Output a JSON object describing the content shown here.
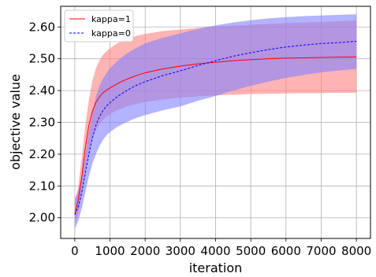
{
  "chart_data": {
    "type": "line",
    "xlabel": "iteration",
    "ylabel": "objective value",
    "xlim": [
      -400,
      8400
    ],
    "ylim": [
      1.935,
      2.665
    ],
    "x_ticks": [
      0,
      1000,
      2000,
      3000,
      4000,
      5000,
      6000,
      7000,
      8000
    ],
    "x_tick_labels": [
      "0",
      "1000",
      "2000",
      "3000",
      "4000",
      "5000",
      "6000",
      "7000",
      "8000"
    ],
    "y_ticks": [
      2.0,
      2.1,
      2.2,
      2.3,
      2.4,
      2.5,
      2.6
    ],
    "y_tick_labels": [
      "2.00",
      "2.10",
      "2.20",
      "2.30",
      "2.40",
      "2.50",
      "2.60"
    ],
    "grid": true,
    "legend_position": "top-left",
    "x": [
      0,
      100,
      200,
      300,
      400,
      500,
      600,
      700,
      800,
      900,
      1000,
      1200,
      1400,
      1600,
      1800,
      2000,
      2500,
      3000,
      3500,
      4000,
      4500,
      5000,
      5500,
      6000,
      6500,
      7000,
      7500,
      8000
    ],
    "series": [
      {
        "name": "kappa=1",
        "color": "#ff0000",
        "line_style": "solid",
        "band_color": "#ff8080",
        "values": [
          2.01,
          2.057,
          2.13,
          2.22,
          2.29,
          2.335,
          2.363,
          2.38,
          2.393,
          2.401,
          2.408,
          2.421,
          2.432,
          2.441,
          2.449,
          2.456,
          2.468,
          2.477,
          2.484,
          2.489,
          2.494,
          2.497,
          2.5,
          2.502,
          2.503,
          2.504,
          2.505,
          2.506
        ],
        "band_upper": [
          2.04,
          2.1,
          2.19,
          2.29,
          2.37,
          2.43,
          2.47,
          2.495,
          2.512,
          2.524,
          2.533,
          2.548,
          2.559,
          2.567,
          2.573,
          2.578,
          2.587,
          2.592,
          2.597,
          2.601,
          2.604,
          2.607,
          2.61,
          2.612,
          2.614,
          2.616,
          2.618,
          2.62
        ],
        "band_lower": [
          1.98,
          2.015,
          2.07,
          2.15,
          2.21,
          2.25,
          2.275,
          2.295,
          2.308,
          2.318,
          2.326,
          2.338,
          2.347,
          2.354,
          2.359,
          2.364,
          2.372,
          2.378,
          2.382,
          2.385,
          2.387,
          2.389,
          2.39,
          2.391,
          2.392,
          2.392,
          2.393,
          2.393
        ]
      },
      {
        "name": "kappa=0",
        "color": "#0000ff",
        "line_style": "dashed",
        "band_color": "#8080ff",
        "values": [
          2.01,
          2.035,
          2.08,
          2.14,
          2.2,
          2.25,
          2.29,
          2.318,
          2.337,
          2.351,
          2.362,
          2.38,
          2.395,
          2.408,
          2.419,
          2.428,
          2.447,
          2.462,
          2.479,
          2.494,
          2.508,
          2.519,
          2.529,
          2.537,
          2.543,
          2.548,
          2.551,
          2.555
        ],
        "band_upper": [
          2.06,
          2.085,
          2.13,
          2.2,
          2.27,
          2.33,
          2.38,
          2.414,
          2.437,
          2.455,
          2.47,
          2.492,
          2.51,
          2.525,
          2.537,
          2.548,
          2.566,
          2.58,
          2.594,
          2.605,
          2.614,
          2.621,
          2.627,
          2.631,
          2.634,
          2.636,
          2.638,
          2.64
        ],
        "band_lower": [
          1.965,
          1.99,
          2.03,
          2.08,
          2.13,
          2.17,
          2.2,
          2.225,
          2.245,
          2.259,
          2.27,
          2.285,
          2.297,
          2.307,
          2.316,
          2.323,
          2.338,
          2.35,
          2.368,
          2.383,
          2.4,
          2.415,
          2.428,
          2.44,
          2.449,
          2.457,
          2.463,
          2.468
        ]
      }
    ]
  }
}
